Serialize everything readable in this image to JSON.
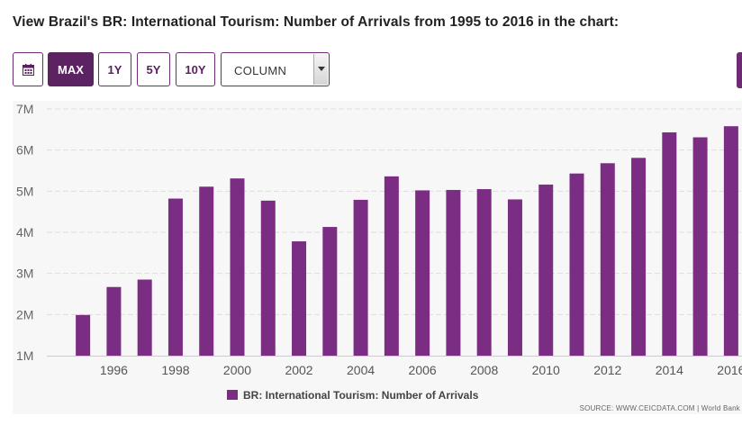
{
  "page": {
    "title": "View Brazil's BR: International Tourism: Number of Arrivals from 1995 to 2016 in the chart:"
  },
  "toolbar": {
    "calendar_icon": "calendar-icon",
    "ranges": [
      "MAX",
      "1Y",
      "5Y",
      "10Y"
    ],
    "active_range": "MAX",
    "chart_type_value": "COLUMN"
  },
  "colors": {
    "bar": "#7b2d83",
    "accent": "#5b2361",
    "grid": "#dddddd"
  },
  "source_note": "SOURCE: WWW.CEICDATA.COM | World Bank",
  "chart_data": {
    "type": "bar",
    "title": "",
    "xlabel": "",
    "ylabel": "",
    "legend_position": "bottom-center",
    "series": [
      {
        "name": "BR: International Tourism: Number of Arrivals",
        "x": [
          1995,
          1996,
          1997,
          1998,
          1999,
          2000,
          2001,
          2002,
          2003,
          2004,
          2005,
          2006,
          2007,
          2008,
          2009,
          2010,
          2011,
          2012,
          2013,
          2014,
          2015,
          2016
        ],
        "values": [
          1.99,
          2.67,
          2.85,
          4.82,
          5.11,
          5.31,
          4.77,
          3.78,
          4.13,
          4.79,
          5.36,
          5.02,
          5.03,
          5.05,
          4.8,
          5.16,
          5.43,
          5.68,
          5.81,
          6.43,
          6.31,
          6.58
        ]
      }
    ],
    "x_ticks": [
      "1996",
      "1998",
      "2000",
      "2002",
      "2004",
      "2006",
      "2008",
      "2010",
      "2012",
      "2014",
      "2016"
    ],
    "y_ticks": [
      "1M",
      "2M",
      "3M",
      "4M",
      "5M",
      "6M",
      "7M"
    ],
    "ylim": [
      1,
      7
    ],
    "y_unit": "M"
  }
}
